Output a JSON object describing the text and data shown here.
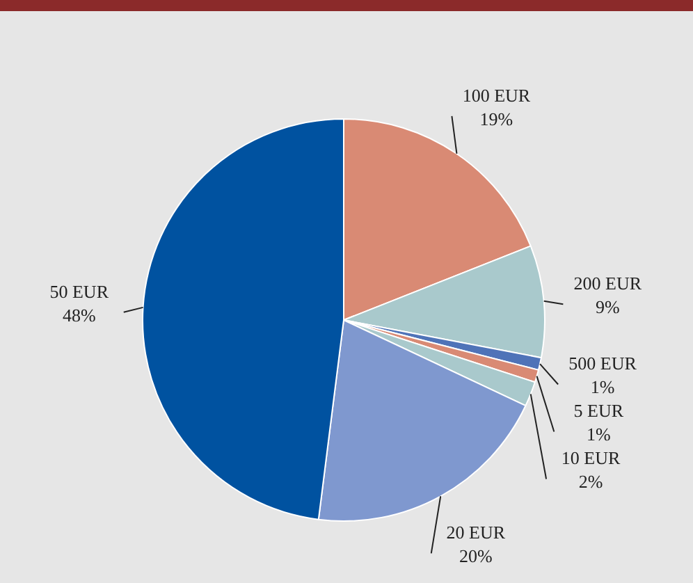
{
  "chart_data": {
    "type": "pie",
    "categories": [
      "100 EUR",
      "200 EUR",
      "500 EUR",
      "5 EUR",
      "10 EUR",
      "20 EUR",
      "50 EUR"
    ],
    "values": [
      19,
      9,
      1,
      1,
      2,
      20,
      48
    ],
    "value_labels": [
      "19%",
      "9%",
      "1%",
      "1%",
      "2%",
      "20%",
      "48%"
    ],
    "colors": [
      "#d98a74",
      "#a9c9cc",
      "#4f73b8",
      "#d98a74",
      "#a9c9cc",
      "#7f98cf",
      "#0052a0"
    ],
    "legend": false
  }
}
